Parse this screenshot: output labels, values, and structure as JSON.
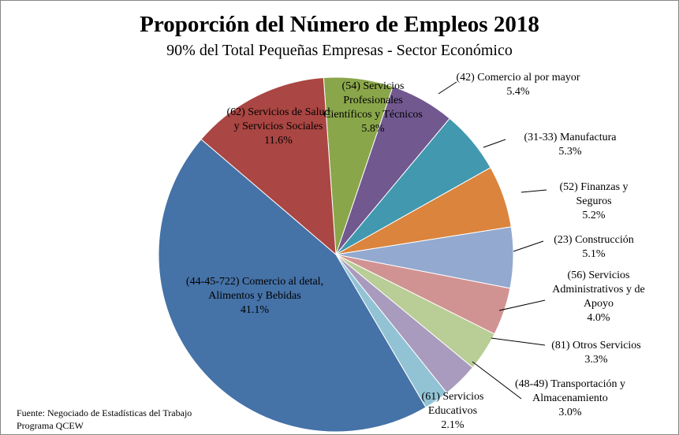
{
  "chart_data": {
    "type": "pie",
    "title": "Proporción del Número de Empleos 2018",
    "subtitle": "90% del Total Pequeñas Empresas - Sector Económico",
    "source": "Fuente: Negociado de Estadísticas del Trabajo",
    "source2": "Programa QCEW",
    "categories": [
      "(54) Servicios Profesionales Científicos y Técnicos",
      "(42) Comercio al por mayor",
      "(31-33) Manufactura",
      "(52) Finanzas y Seguros",
      "(23) Construcción",
      "(56) Servicios Administrativos y de Apoyo",
      "(81) Otros Servicios",
      "(48-49) Transportación y Almacenamiento",
      "(61) Servicios Educativos",
      "(44-45-722) Comercio al detal, Alimentos y Bebidas",
      "(62) Servicios de Salud y Servicios Sociales"
    ],
    "values": [
      5.8,
      5.4,
      5.3,
      5.2,
      5.1,
      4.0,
      3.3,
      3.0,
      2.1,
      41.1,
      11.6
    ],
    "value_labels": [
      "5.8%",
      "5.4%",
      "5.3%",
      "5.2%",
      "5.1%",
      "4.0%",
      "3.3%",
      "3.0%",
      "2.1%",
      "41.1%",
      "11.6%"
    ],
    "colors": [
      "#8aa64a",
      "#71588f",
      "#4198af",
      "#db843d",
      "#93a9cf",
      "#d19392",
      "#b9cd96",
      "#a99bbd",
      "#92c3d5",
      "#4572a7",
      "#aa4643"
    ]
  }
}
